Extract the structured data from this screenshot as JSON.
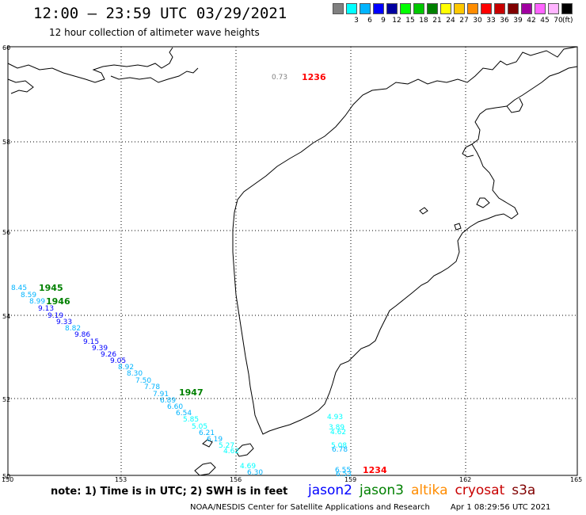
{
  "header": {
    "title": "12:00 – 23:59 UTC 03/29/2021",
    "subtitle": "12 hour collection of altimeter wave heights"
  },
  "color_scale": {
    "unit": "(ft)",
    "swatches": [
      {
        "color": "#808080",
        "label": ""
      },
      {
        "color": "#00ffff",
        "label": "3"
      },
      {
        "color": "#00b4ff",
        "label": "6"
      },
      {
        "color": "#0000ff",
        "label": "9"
      },
      {
        "color": "#0000a0",
        "label": "12"
      },
      {
        "color": "#00ff00",
        "label": "15"
      },
      {
        "color": "#00c800",
        "label": "18"
      },
      {
        "color": "#008000",
        "label": "21"
      },
      {
        "color": "#ffff00",
        "label": "24"
      },
      {
        "color": "#ffc800",
        "label": "27"
      },
      {
        "color": "#ff8c00",
        "label": "30"
      },
      {
        "color": "#ff0000",
        "label": "33"
      },
      {
        "color": "#c80000",
        "label": "36"
      },
      {
        "color": "#800000",
        "label": "39"
      },
      {
        "color": "#a000a0",
        "label": "42"
      },
      {
        "color": "#ff64ff",
        "label": "45"
      },
      {
        "color": "#ffb4ff",
        "label": "70"
      },
      {
        "color": "#000000",
        "label": ""
      }
    ]
  },
  "map": {
    "lat_ticks": [
      "50",
      "52",
      "54",
      "56",
      "58",
      "60"
    ],
    "lon_ticks": [
      "150",
      "153",
      "156",
      "159",
      "162",
      "165"
    ],
    "track_values": [
      {
        "text": "8.45",
        "color": "#00b4ff"
      },
      {
        "text": "8.59",
        "color": "#00b4ff"
      },
      {
        "text": "8.99",
        "color": "#00b4ff"
      },
      {
        "text": "9.13",
        "color": "#0000ff"
      },
      {
        "text": "9.19",
        "color": "#0000ff"
      },
      {
        "text": "9.33",
        "color": "#0000ff"
      },
      {
        "text": "8.82",
        "color": "#00b4ff"
      },
      {
        "text": "9.86",
        "color": "#0000ff"
      },
      {
        "text": "9.15",
        "color": "#0000ff"
      },
      {
        "text": "9.39",
        "color": "#0000ff"
      },
      {
        "text": "9.26",
        "color": "#0000ff"
      },
      {
        "text": "9.05",
        "color": "#0000ff"
      },
      {
        "text": "8.92",
        "color": "#00b4ff"
      },
      {
        "text": "8.30",
        "color": "#00b4ff"
      },
      {
        "text": "7.50",
        "color": "#00b4ff"
      },
      {
        "text": "7.78",
        "color": "#00b4ff"
      },
      {
        "text": "7.91",
        "color": "#00b4ff"
      },
      {
        "text": "6.89",
        "color": "#00b4ff"
      },
      {
        "text": "6.60",
        "color": "#00b4ff"
      },
      {
        "text": "6.54",
        "color": "#00b4ff"
      },
      {
        "text": "5.85",
        "color": "#00ffff"
      },
      {
        "text": "5.05",
        "color": "#00ffff"
      },
      {
        "text": "6.21",
        "color": "#00b4ff"
      },
      {
        "text": "6.19",
        "color": "#00b4ff"
      },
      {
        "text": "5.27",
        "color": "#00ffff"
      },
      {
        "text": "4.62",
        "color": "#00ffff"
      },
      {
        "text": "4.69",
        "color": "#00ffff"
      },
      {
        "text": "6.30",
        "color": "#00b4ff"
      },
      {
        "text": "4.93",
        "color": "#00ffff"
      },
      {
        "text": "3.89",
        "color": "#00ffff"
      },
      {
        "text": "4.62",
        "color": "#00ffff"
      },
      {
        "text": "5.08",
        "color": "#00ffff"
      },
      {
        "text": "6.78",
        "color": "#00b4ff"
      },
      {
        "text": "6.55",
        "color": "#00b4ff"
      },
      {
        "text": "6.53",
        "color": "#00b4ff"
      },
      {
        "text": "0.73",
        "color": "#808080"
      }
    ],
    "time_stamps": [
      {
        "text": "1945",
        "color": "#008000"
      },
      {
        "text": "1946",
        "color": "#008000"
      },
      {
        "text": "1947",
        "color": "#008000"
      },
      {
        "text": "1236",
        "color": "#ff0000"
      },
      {
        "text": "1234",
        "color": "#ff0000"
      }
    ]
  },
  "notes": {
    "text": "note:  1) Time is in UTC;  2) SWH is in feet"
  },
  "satellites": [
    {
      "name": "jason2",
      "color": "#0000ff"
    },
    {
      "name": "jason3",
      "color": "#008000"
    },
    {
      "name": "altika",
      "color": "#ff8c00"
    },
    {
      "name": "cryosat",
      "color": "#c80000"
    },
    {
      "name": "s3a",
      "color": "#800000"
    }
  ],
  "footer": {
    "credit": "NOAA/NESDIS Center for Satellite Applications and Research",
    "timestamp": "Apr  1 08:29:56 UTC 2021"
  }
}
